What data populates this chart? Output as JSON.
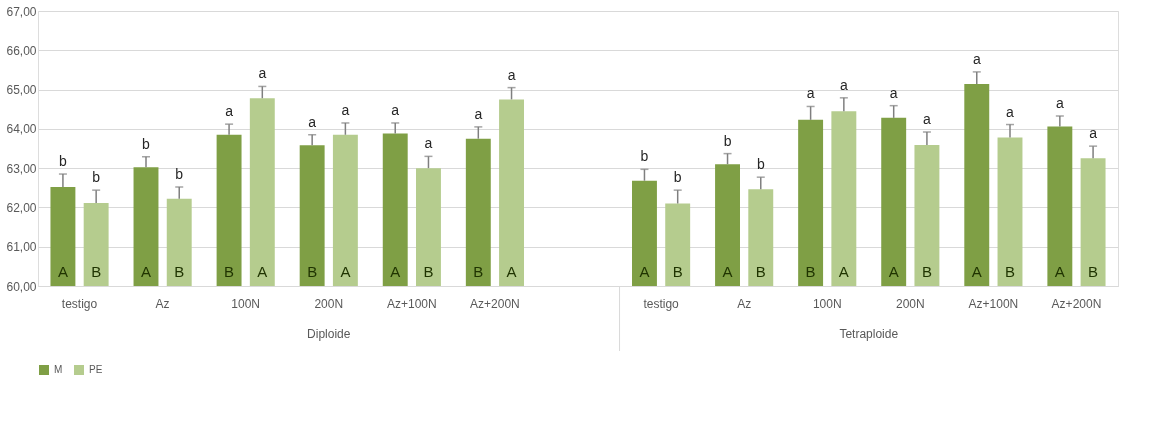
{
  "chart_data": {
    "type": "bar",
    "categories": [
      "testigo",
      "Az",
      "100N",
      "200N",
      "Az+100N",
      "Az+200N",
      null,
      "testigo",
      "Az",
      "100N",
      "200N",
      "Az+100N",
      "Az+200N"
    ],
    "series": [
      {
        "name": "M",
        "color": "#7f9f45",
        "values": [
          62.52,
          63.02,
          63.85,
          63.58,
          63.88,
          63.75,
          null,
          62.68,
          63.1,
          64.23,
          64.28,
          65.14,
          64.06
        ],
        "errors": [
          0.33,
          0.27,
          0.27,
          0.27,
          0.27,
          0.3,
          null,
          0.29,
          0.27,
          0.34,
          0.31,
          0.31,
          0.27
        ],
        "value_labels": [
          "b",
          "b",
          "a",
          "a",
          "a",
          "a",
          null,
          "b",
          "b",
          "a",
          "a",
          "a",
          "a"
        ]
      },
      {
        "name": "PE",
        "color": "#b5cc8e",
        "values": [
          62.11,
          62.22,
          64.78,
          63.85,
          63.0,
          64.75,
          null,
          62.1,
          62.46,
          64.45,
          63.59,
          63.78,
          63.25
        ],
        "errors": [
          0.33,
          0.3,
          0.3,
          0.3,
          0.3,
          0.3,
          null,
          0.34,
          0.31,
          0.34,
          0.33,
          0.33,
          0.31
        ],
        "value_labels": [
          "b",
          "b",
          "a",
          "a",
          "a",
          "a",
          null,
          "b",
          "b",
          "a",
          "a",
          "a",
          "a"
        ]
      }
    ],
    "ylim": [
      60,
      67
    ],
    "yticks": [
      {
        "value": 60,
        "label": "60,00"
      },
      {
        "value": 61,
        "label": "61,00"
      },
      {
        "value": 62,
        "label": "62,00"
      },
      {
        "value": 63,
        "label": "63,00"
      },
      {
        "value": 64,
        "label": "64,00"
      },
      {
        "value": 65,
        "label": "65,00"
      },
      {
        "value": 66,
        "label": "66,00"
      },
      {
        "value": 67,
        "label": "67,00"
      }
    ],
    "grid": "y",
    "legend": "bottom",
    "annotations": [
      "A",
      "B",
      "A",
      "B",
      "B",
      "A",
      "B",
      "A",
      "A",
      "B",
      "B",
      "A",
      "A",
      "B",
      "A",
      "B",
      "B",
      "A",
      "A",
      "B",
      "A",
      "B",
      "A",
      "B",
      "Diploide",
      "Tetraploide"
    ]
  }
}
